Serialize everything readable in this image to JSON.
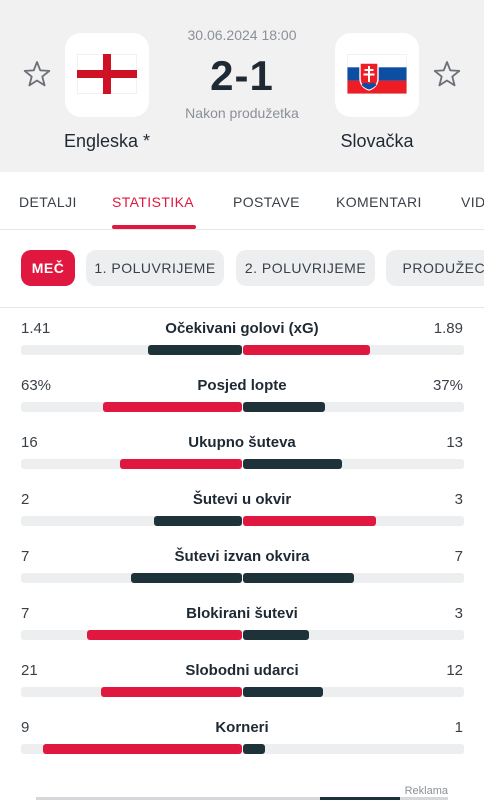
{
  "match": {
    "datetime": "30.06.2024 18:00",
    "score": "2-1",
    "status": "Nakon produžetka",
    "home_team": "Engleska *",
    "away_team": "Slovačka",
    "home_flag": "england-flag",
    "away_flag": "slovakia-flag"
  },
  "tabs": [
    "DETALJI",
    "STATISTIKA",
    "POSTAVE",
    "KOMENTARI",
    "VID"
  ],
  "active_tab": "STATISTIKA",
  "periods": [
    "MEČ",
    "1. POLUVRIJEME",
    "2. POLUVRIJEME",
    "PRODUŽECI"
  ],
  "active_period": "MEČ",
  "stats": [
    {
      "name": "Očekivani golovi (xG)",
      "home": "1.41",
      "away": "1.89",
      "home_val": 1.41,
      "away_val": 1.89
    },
    {
      "name": "Posjed lopte",
      "home": "63%",
      "away": "37%",
      "home_val": 63,
      "away_val": 37
    },
    {
      "name": "Ukupno šuteva",
      "home": "16",
      "away": "13",
      "home_val": 16,
      "away_val": 13
    },
    {
      "name": "Šutevi u okvir",
      "home": "2",
      "away": "3",
      "home_val": 2,
      "away_val": 3
    },
    {
      "name": "Šutevi izvan okvira",
      "home": "7",
      "away": "7",
      "home_val": 7,
      "away_val": 7
    },
    {
      "name": "Blokirani šutevi",
      "home": "7",
      "away": "3",
      "home_val": 7,
      "away_val": 3
    },
    {
      "name": "Slobodni udarci",
      "home": "21",
      "away": "12",
      "home_val": 21,
      "away_val": 12
    },
    {
      "name": "Korneri",
      "home": "9",
      "away": "1",
      "home_val": 9,
      "away_val": 1
    }
  ],
  "colors": {
    "accent": "#e0173f",
    "dark_bar": "#1e3339",
    "header_bg": "#f1f1f2"
  },
  "ad": {
    "label": "Reklama"
  }
}
